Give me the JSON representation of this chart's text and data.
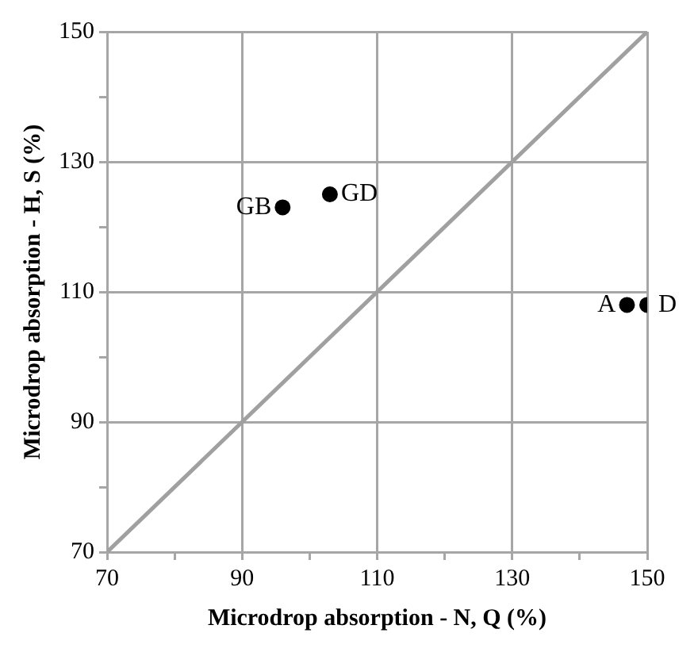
{
  "chart_data": {
    "type": "scatter",
    "xlabel": "Microdrop absorption - N, Q (%)",
    "ylabel": "Microdrop absorption - H, S (%)",
    "series": [
      {
        "marker": "circle",
        "color": "#000000",
        "x": [
          96,
          103,
          147,
          150
        ],
        "values": [
          123,
          125,
          108,
          108
        ]
      },
      {
        "type": "line",
        "marker": "none",
        "color": "#a0a0a0",
        "x": [
          70,
          150
        ],
        "values": [
          70,
          150
        ]
      }
    ],
    "annotations": [
      {
        "text": "GB",
        "x": 96,
        "y": 123
      },
      {
        "text": "GD",
        "x": 103,
        "y": 125
      },
      {
        "text": "A",
        "x": 147,
        "y": 108
      },
      {
        "text": "D",
        "x": 150,
        "y": 108
      }
    ],
    "xlim": [
      70,
      150
    ],
    "ylim": [
      70,
      150
    ],
    "xticks": [
      70,
      {
        "value": 80,
        "label": null
      },
      90,
      {
        "value": 100,
        "label": null
      },
      110,
      {
        "value": 120,
        "label": null
      },
      130,
      {
        "value": 140,
        "label": null
      },
      150
    ],
    "yticks": [
      70,
      {
        "value": 80,
        "label": null
      },
      90,
      {
        "value": 100,
        "label": null
      },
      110,
      {
        "value": 120,
        "label": null
      },
      130,
      {
        "value": 140,
        "label": null
      },
      150
    ],
    "grid": true,
    "legend": false
  }
}
